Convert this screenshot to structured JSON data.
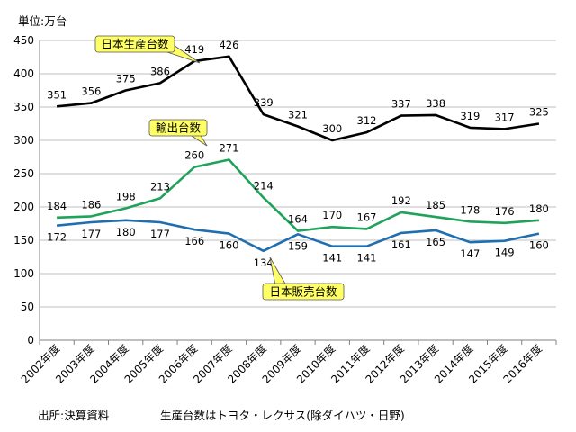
{
  "chart_data": {
    "type": "line",
    "title": "",
    "unit_label": "単位:万台",
    "categories": [
      "2002年度",
      "2003年度",
      "2004年度",
      "2005年度",
      "2006年度",
      "2007年度",
      "2008年度",
      "2009年度",
      "2010年度",
      "2011年度",
      "2012年度",
      "2013年度",
      "2014年度",
      "2015年度",
      "2016年度"
    ],
    "ylim": [
      0,
      450
    ],
    "yticks": [
      0,
      50,
      100,
      150,
      200,
      250,
      300,
      350,
      400,
      450
    ],
    "grid": true,
    "series": [
      {
        "name": "日本生産台数",
        "color": "#000000",
        "values": [
          351,
          356,
          375,
          386,
          419,
          426,
          339,
          321,
          300,
          312,
          337,
          338,
          319,
          317,
          325
        ]
      },
      {
        "name": "輸出台数",
        "color": "#1fa35a",
        "values": [
          184,
          186,
          198,
          213,
          260,
          271,
          214,
          164,
          170,
          167,
          192,
          185,
          178,
          176,
          180
        ]
      },
      {
        "name": "日本販売台数",
        "color": "#1f6fb0",
        "values": [
          172,
          177,
          180,
          177,
          166,
          160,
          134,
          159,
          141,
          141,
          161,
          165,
          147,
          149,
          160
        ]
      }
    ],
    "callout_color": "#ffff66",
    "footnotes": [
      "出所:決算資料",
      "生産台数はトヨタ・レクサス(除ダイハツ・日野)"
    ]
  }
}
